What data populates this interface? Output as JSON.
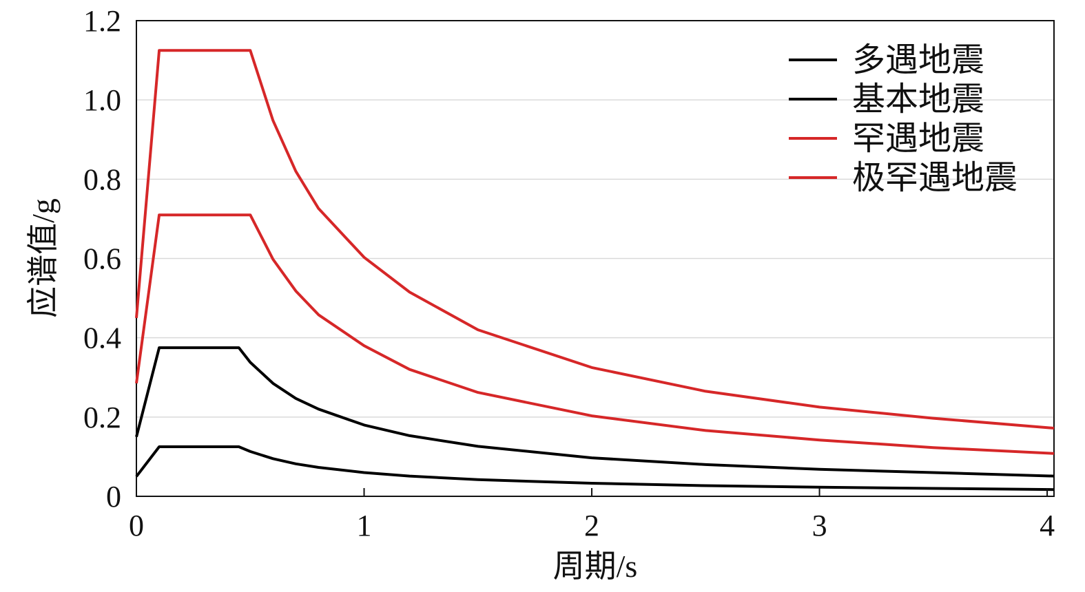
{
  "chart_data": {
    "type": "line",
    "xlabel": "周期/s",
    "ylabel": "应谱值/g",
    "xlim": [
      0,
      4.03
    ],
    "ylim": [
      0,
      1.2
    ],
    "x_ticks": [
      "0",
      "1",
      "2",
      "3",
      "4"
    ],
    "y_ticks": [
      "0",
      "0.2",
      "0.4",
      "0.6",
      "0.8",
      "1.0",
      "1.2"
    ],
    "grid": "horizontal",
    "legend_position": "top-right",
    "series": [
      {
        "name": "多遇地震",
        "color": "#000000",
        "x": [
          0,
          0.1,
          0.45,
          0.5,
          0.6,
          0.7,
          0.8,
          1.0,
          1.2,
          1.5,
          2.0,
          2.5,
          3.0,
          3.5,
          4.03
        ],
        "y": [
          0.05,
          0.125,
          0.125,
          0.113,
          0.095,
          0.082,
          0.073,
          0.06,
          0.051,
          0.042,
          0.033,
          0.027,
          0.023,
          0.02,
          0.017
        ]
      },
      {
        "name": "基本地震",
        "color": "#000000",
        "x": [
          0,
          0.1,
          0.45,
          0.5,
          0.6,
          0.7,
          0.8,
          1.0,
          1.2,
          1.5,
          2.0,
          2.5,
          3.0,
          3.5,
          4.03
        ],
        "y": [
          0.15,
          0.375,
          0.375,
          0.338,
          0.285,
          0.247,
          0.22,
          0.18,
          0.153,
          0.126,
          0.097,
          0.08,
          0.068,
          0.06,
          0.051
        ]
      },
      {
        "name": "罕遇地震",
        "color": "#d62728",
        "x": [
          0,
          0.1,
          0.5,
          0.6,
          0.7,
          0.8,
          1.0,
          1.2,
          1.5,
          2.0,
          2.5,
          3.0,
          3.5,
          4.03
        ],
        "y": [
          0.285,
          0.71,
          0.71,
          0.598,
          0.518,
          0.458,
          0.38,
          0.32,
          0.262,
          0.203,
          0.166,
          0.142,
          0.123,
          0.108
        ]
      },
      {
        "name": "极罕遇地震",
        "color": "#d62728",
        "x": [
          0,
          0.1,
          0.5,
          0.6,
          0.7,
          0.8,
          1.0,
          1.2,
          1.5,
          2.0,
          2.5,
          3.0,
          3.5,
          4.03
        ],
        "y": [
          0.45,
          1.125,
          1.125,
          0.948,
          0.82,
          0.726,
          0.603,
          0.515,
          0.42,
          0.325,
          0.265,
          0.225,
          0.197,
          0.172
        ]
      }
    ]
  }
}
